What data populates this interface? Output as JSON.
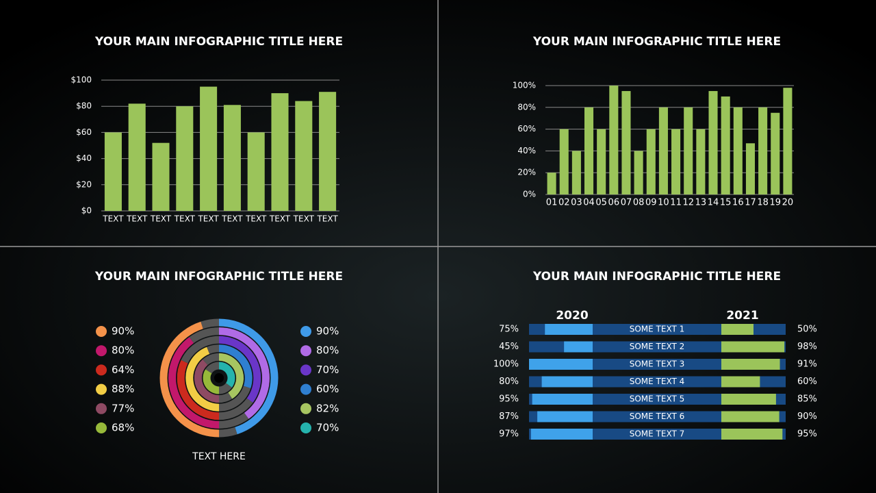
{
  "chart_data": [
    {
      "type": "bar",
      "title": "YOUR MAIN INFOGRAPHIC TITLE HERE",
      "categories": [
        "TEXT",
        "TEXT",
        "TEXT",
        "TEXT",
        "TEXT",
        "TEXT",
        "TEXT",
        "TEXT",
        "TEXT",
        "TEXT"
      ],
      "values": [
        60,
        82,
        52,
        80,
        95,
        81,
        60,
        90,
        84,
        91
      ],
      "color": "#9bc45a",
      "ylim": [
        0,
        100
      ],
      "yticks": [
        {
          "value": 0,
          "label": "$0"
        },
        {
          "value": 20,
          "label": "$20"
        },
        {
          "value": 40,
          "label": "$40"
        },
        {
          "value": 60,
          "label": "$60"
        },
        {
          "value": 80,
          "label": "$80"
        },
        {
          "value": 100,
          "label": "$100"
        }
      ],
      "grid": true
    },
    {
      "type": "bar",
      "title": "YOUR MAIN INFOGRAPHIC TITLE HERE",
      "categories": [
        "01",
        "02",
        "03",
        "04",
        "05",
        "06",
        "07",
        "08",
        "09",
        "10",
        "11",
        "12",
        "13",
        "14",
        "15",
        "16",
        "17",
        "18",
        "19",
        "20"
      ],
      "values": [
        20,
        60,
        40,
        80,
        60,
        100,
        95,
        40,
        60,
        80,
        60,
        80,
        60,
        95,
        90,
        80,
        47,
        80,
        75,
        98
      ],
      "color": "#9bc45a",
      "ylim": [
        0,
        100
      ],
      "yticks": [
        {
          "value": 0,
          "label": "0%"
        },
        {
          "value": 20,
          "label": "20%"
        },
        {
          "value": 40,
          "label": "40%"
        },
        {
          "value": 60,
          "label": "60%"
        },
        {
          "value": 80,
          "label": "80%"
        },
        {
          "value": 100,
          "label": "100%"
        }
      ],
      "grid": true
    },
    {
      "type": "radial",
      "title": "YOUR MAIN INFOGRAPHIC TITLE HERE",
      "label": "TEXT HERE",
      "left_values": [
        90,
        80,
        64,
        88,
        77,
        68
      ],
      "left_value_labels": [
        "90%",
        "80%",
        "64%",
        "88%",
        "77%",
        "68%"
      ],
      "left_colors": [
        "#f4924a",
        "#c2186b",
        "#cc2a1e",
        "#f2cd45",
        "#8e4a63",
        "#97b93a"
      ],
      "right_values": [
        90,
        80,
        70,
        60,
        82,
        70
      ],
      "right_value_labels": [
        "90%",
        "80%",
        "70%",
        "60%",
        "82%",
        "70%"
      ],
      "right_colors": [
        "#3f9ae8",
        "#b06be6",
        "#6a36c8",
        "#2f7fd0",
        "#a7c561",
        "#25b3ad"
      ]
    },
    {
      "type": "butterfly",
      "title": "YOUR MAIN INFOGRAPHIC TITLE HERE",
      "left_name": "2020",
      "right_name": "2021",
      "categories": [
        "SOME TEXT  1",
        "SOME TEXT  2",
        "SOME TEXT  3",
        "SOME TEXT  4",
        "SOME TEXT  5",
        "SOME TEXT  6",
        "SOME TEXT  7"
      ],
      "left_values": [
        75,
        45,
        100,
        80,
        95,
        87,
        97
      ],
      "left_value_labels": [
        "75%",
        "45%",
        "100%",
        "80%",
        "95%",
        "87%",
        "97%"
      ],
      "right_values": [
        50,
        98,
        91,
        60,
        85,
        90,
        95
      ],
      "right_value_labels": [
        "50%",
        "98%",
        "91%",
        "60%",
        "85%",
        "90%",
        "95%"
      ],
      "left_color": "#3fa2ea",
      "right_color": "#9bc45a",
      "track_color": "#184a84",
      "xlim": [
        0,
        100
      ]
    }
  ]
}
